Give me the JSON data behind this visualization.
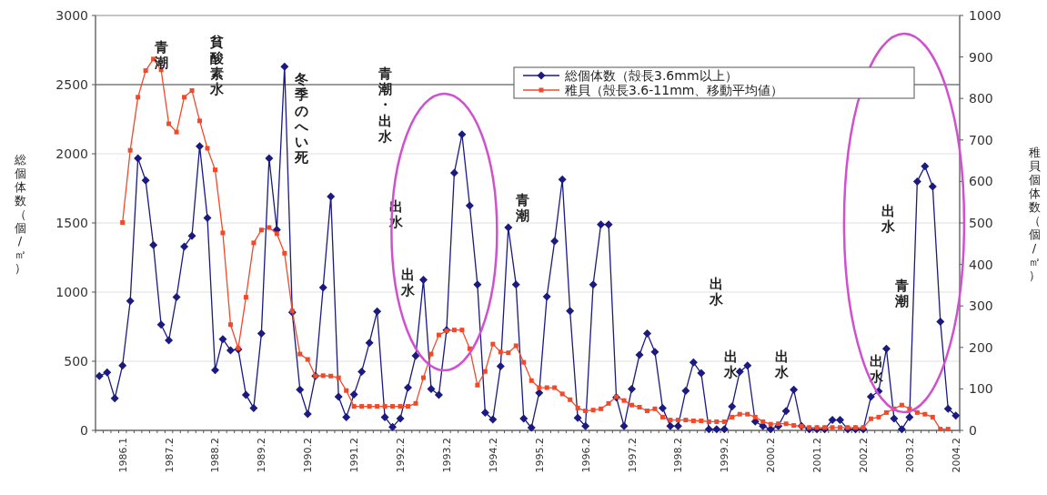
{
  "chart_data": {
    "type": "line",
    "categories": [
      null,
      null,
      null,
      "1986.1",
      null,
      null,
      null,
      null,
      null,
      "1987.2",
      null,
      null,
      null,
      null,
      null,
      "1988.2",
      null,
      null,
      null,
      null,
      null,
      "1989.2",
      null,
      null,
      null,
      null,
      null,
      "1990.2",
      null,
      null,
      null,
      null,
      null,
      "1991.2",
      null,
      null,
      null,
      null,
      null,
      "1992.2",
      null,
      null,
      null,
      null,
      null,
      "1993.2",
      null,
      null,
      null,
      null,
      null,
      "1994.2",
      null,
      null,
      null,
      null,
      null,
      "1995.2",
      null,
      null,
      null,
      null,
      null,
      "1996.2",
      null,
      null,
      null,
      null,
      null,
      "1997.2",
      null,
      null,
      null,
      null,
      null,
      "1998.2",
      null,
      null,
      null,
      null,
      null,
      "1999.2",
      null,
      null,
      null,
      null,
      null,
      "2000.2",
      null,
      null,
      null,
      null,
      null,
      "2001.2",
      null,
      null,
      null,
      null,
      null,
      "2002.2",
      null,
      null,
      null,
      null,
      null,
      "2003.2",
      null,
      null,
      null,
      null,
      null,
      "2004.2"
    ],
    "series": [
      {
        "name": "総個体数（殻長3.6mm以上）",
        "color": "#1a1a80",
        "marker": "diamond",
        "values": [
          393,
          419,
          232,
          469,
          936,
          1967,
          1807,
          1340,
          765,
          651,
          963,
          1329,
          1406,
          2055,
          1537,
          436,
          660,
          579,
          586,
          257,
          162,
          700,
          1967,
          1450,
          2630,
          853,
          294,
          118,
          393,
          1033,
          1691,
          243,
          96,
          260,
          425,
          634,
          860,
          96,
          24,
          86,
          309,
          539,
          1088,
          300,
          257,
          726,
          1862,
          2140,
          1625,
          1055,
          129,
          79,
          463,
          1467,
          1055,
          86,
          20,
          272,
          967,
          1368,
          1814,
          864,
          90,
          31,
          1055,
          1489,
          1489,
          239,
          31,
          300,
          546,
          700,
          568,
          162,
          31,
          31,
          287,
          491,
          414,
          9,
          9,
          9,
          173,
          425,
          469,
          64,
          31,
          9,
          31,
          140,
          294,
          31,
          9,
          9,
          9,
          75,
          75,
          9,
          9,
          9,
          243,
          283,
          590,
          86,
          9,
          96,
          1800,
          1910,
          1763,
          787,
          156,
          107
        ]
      },
      {
        "name": "稚貝（殻長3.6-11mm、移動平均値）",
        "color": "#f04a2a",
        "marker": "square",
        "axis": "y2",
        "values": [
          null,
          null,
          null,
          501,
          675,
          803,
          867,
          895,
          869,
          739,
          719,
          803,
          819,
          746,
          680,
          628,
          476,
          255,
          198,
          321,
          452,
          483,
          489,
          474,
          427,
          288,
          184,
          171,
          131,
          132,
          131,
          127,
          96,
          58,
          58,
          58,
          58,
          58,
          58,
          58,
          58,
          65,
          127,
          184,
          230,
          240,
          242,
          242,
          197,
          109,
          142,
          208,
          189,
          187,
          204,
          164,
          120,
          103,
          103,
          103,
          88,
          74,
          54,
          47,
          49,
          52,
          65,
          81,
          72,
          61,
          56,
          47,
          52,
          32,
          25,
          25,
          25,
          23,
          23,
          21,
          21,
          21,
          32,
          39,
          39,
          32,
          21,
          15,
          16,
          16,
          12,
          10,
          7,
          7,
          7,
          7,
          7,
          7,
          7,
          7,
          28,
          32,
          43,
          52,
          61,
          52,
          43,
          39,
          32,
          3,
          3,
          null
        ]
      }
    ],
    "ylabel": "総個体数（個/㎡）",
    "y2label": "稚貝個体数（個/㎡）",
    "ylim": [
      0,
      3000
    ],
    "yticks": [
      0,
      500,
      1000,
      1500,
      2000,
      2500,
      3000
    ],
    "y2lim": [
      0,
      1000
    ],
    "y2ticks": [
      0,
      100,
      200,
      300,
      400,
      500,
      600,
      700,
      800,
      900,
      1000
    ],
    "grid": "y",
    "legend": "top right",
    "ref_lines": [
      {
        "axis": "y",
        "value": 2500,
        "color": "#808080"
      }
    ],
    "annotations": [
      "青潮",
      "貧酸素水",
      "冬季のへい死",
      "青潮・出水",
      "出水",
      "出水",
      "青潮",
      "出水",
      "出水",
      "出水",
      "出水",
      "青潮",
      "出水"
    ]
  }
}
